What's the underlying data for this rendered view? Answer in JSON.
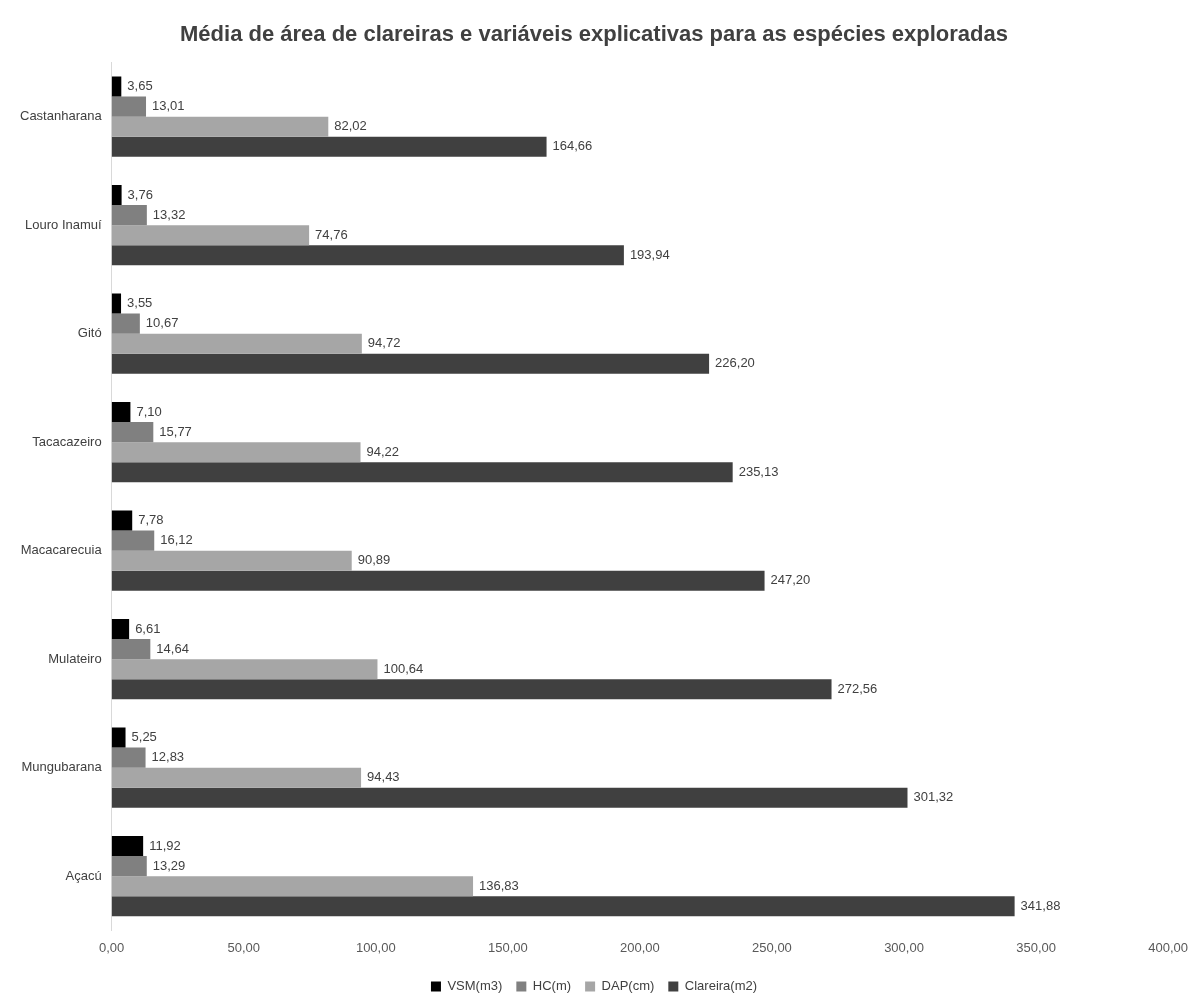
{
  "chart_data": {
    "type": "bar",
    "orientation": "horizontal",
    "title": "Média de área de clareiras e variáveis explicativas para as espécies exploradas",
    "categories": [
      "Castanharana",
      "Louro Inamuí",
      "Gitó",
      "Tacacazeiro",
      "Macacarecuia",
      "Mulateiro",
      "Mungubarana",
      "Açacú"
    ],
    "series": [
      {
        "name": "VSM(m3)",
        "color": "#000000",
        "values": [
          3.65,
          3.76,
          3.55,
          7.1,
          7.78,
          6.61,
          5.25,
          11.92
        ],
        "value_labels": [
          "3,65",
          "3,76",
          "3,55",
          "7,10",
          "7,78",
          "6,61",
          "5,25",
          "11,92"
        ]
      },
      {
        "name": "HC(m)",
        "color": "#808080",
        "values": [
          13.01,
          13.32,
          10.67,
          15.77,
          16.12,
          14.64,
          12.83,
          13.29
        ],
        "value_labels": [
          "13,01",
          "13,32",
          "10,67",
          "15,77",
          "16,12",
          "14,64",
          "12,83",
          "13,29"
        ]
      },
      {
        "name": "DAP(cm)",
        "color": "#a6a6a6",
        "values": [
          82.02,
          74.76,
          94.72,
          94.22,
          90.89,
          100.64,
          94.43,
          136.83
        ],
        "value_labels": [
          "82,02",
          "74,76",
          "94,72",
          "94,22",
          "90,89",
          "100,64",
          "94,43",
          "136,83"
        ]
      },
      {
        "name": "Clareira(m2)",
        "color": "#404040",
        "values": [
          164.66,
          193.94,
          226.2,
          235.13,
          247.2,
          272.56,
          301.32,
          341.88
        ],
        "value_labels": [
          "164,66",
          "193,94",
          "226,20",
          "235,13",
          "247,20",
          "272,56",
          "301,32",
          "341,88"
        ]
      }
    ],
    "xlim": [
      0,
      400
    ],
    "xticks": [
      {
        "value": 0,
        "label": "0,00"
      },
      {
        "value": 50,
        "label": "50,00"
      },
      {
        "value": 100,
        "label": "100,00"
      },
      {
        "value": 150,
        "label": "150,00"
      },
      {
        "value": 200,
        "label": "200,00"
      },
      {
        "value": 250,
        "label": "250,00"
      },
      {
        "value": 300,
        "label": "300,00"
      },
      {
        "value": 350,
        "label": "350,00"
      },
      {
        "value": 400,
        "label": "400,00"
      }
    ],
    "grid": false,
    "legend": "bottom"
  }
}
